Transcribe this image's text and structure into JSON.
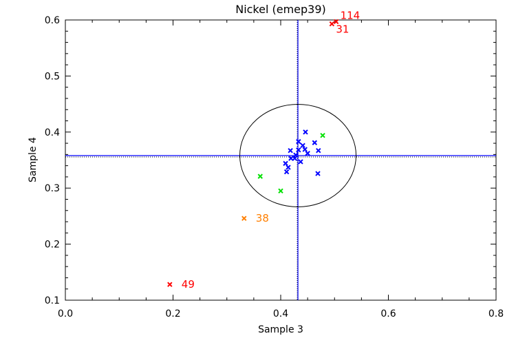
{
  "chart_data": {
    "type": "scatter",
    "title": "Nickel (emep39)",
    "xlabel": "Sample 3",
    "ylabel": "Sample 4",
    "xlim": [
      0.0,
      0.8
    ],
    "ylim": [
      0.1,
      0.6
    ],
    "xticks": [
      "0.0",
      "0.2",
      "0.4",
      "0.6",
      "0.8"
    ],
    "xtick_values": [
      0.0,
      0.2,
      0.4,
      0.6,
      0.8
    ],
    "yticks": [
      "0.1",
      "0.2",
      "0.3",
      "0.4",
      "0.5",
      "0.6"
    ],
    "ytick_values": [
      0.1,
      0.2,
      0.3,
      0.4,
      0.5,
      0.6
    ],
    "grid": false,
    "reference": {
      "x": 0.432,
      "y": 0.358,
      "ellipse_rx": 0.108,
      "ellipse_ry": 0.0915
    },
    "colors": {
      "blue": "#0000ff",
      "green": "#00e000",
      "orange": "#ff7f00",
      "red": "#ff0000",
      "axis": "#000000"
    },
    "points": [
      {
        "x": 0.446,
        "y": 0.4,
        "c": "blue"
      },
      {
        "x": 0.463,
        "y": 0.381,
        "c": "blue"
      },
      {
        "x": 0.433,
        "y": 0.383,
        "c": "blue"
      },
      {
        "x": 0.441,
        "y": 0.376,
        "c": "blue"
      },
      {
        "x": 0.47,
        "y": 0.367,
        "c": "blue"
      },
      {
        "x": 0.418,
        "y": 0.367,
        "c": "blue"
      },
      {
        "x": 0.433,
        "y": 0.368,
        "c": "blue"
      },
      {
        "x": 0.445,
        "y": 0.369,
        "c": "blue"
      },
      {
        "x": 0.45,
        "y": 0.362,
        "c": "blue"
      },
      {
        "x": 0.428,
        "y": 0.359,
        "c": "blue"
      },
      {
        "x": 0.426,
        "y": 0.353,
        "c": "blue"
      },
      {
        "x": 0.419,
        "y": 0.353,
        "c": "blue"
      },
      {
        "x": 0.437,
        "y": 0.347,
        "c": "blue"
      },
      {
        "x": 0.409,
        "y": 0.344,
        "c": "blue"
      },
      {
        "x": 0.414,
        "y": 0.337,
        "c": "blue"
      },
      {
        "x": 0.411,
        "y": 0.329,
        "c": "blue"
      },
      {
        "x": 0.469,
        "y": 0.326,
        "c": "blue"
      },
      {
        "x": 0.478,
        "y": 0.394,
        "c": "green"
      },
      {
        "x": 0.362,
        "y": 0.321,
        "c": "green"
      },
      {
        "x": 0.4,
        "y": 0.295,
        "c": "green"
      },
      {
        "x": 0.332,
        "y": 0.246,
        "c": "orange",
        "label": "38"
      },
      {
        "x": 0.194,
        "y": 0.128,
        "c": "red",
        "label": "49"
      },
      {
        "x": 0.495,
        "y": 0.593,
        "c": "red",
        "label": "31"
      },
      {
        "x": 0.503,
        "y": 0.597,
        "c": "red",
        "label": "114"
      }
    ]
  }
}
